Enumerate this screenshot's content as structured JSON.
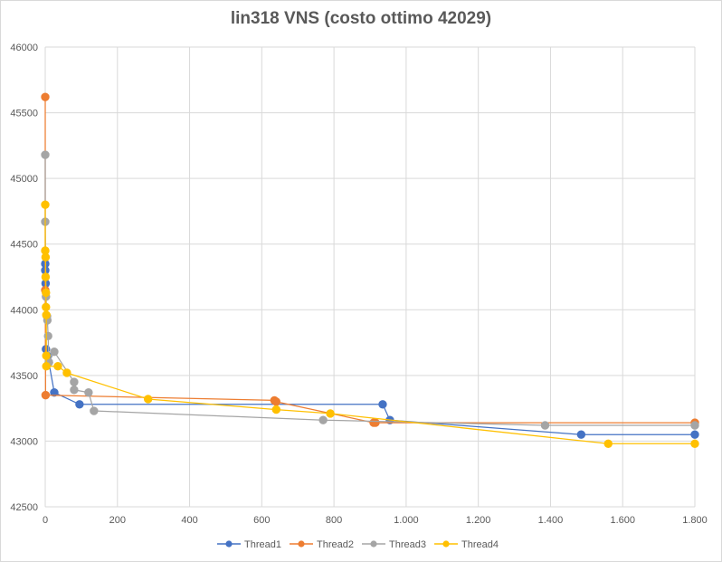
{
  "chart_data": {
    "type": "scatter",
    "title": "lin318 VNS (costo ottimo  42029)",
    "xlabel": "",
    "ylabel": "",
    "xlim": [
      0,
      1800
    ],
    "ylim": [
      42500,
      46000
    ],
    "x_ticks": [
      0,
      200,
      400,
      600,
      800,
      1000,
      1200,
      1400,
      1600,
      1800
    ],
    "x_tick_labels": [
      "0",
      "200",
      "400",
      "600",
      "800",
      "1.000",
      "1.200",
      "1.400",
      "1.600",
      "1.800"
    ],
    "y_ticks": [
      42500,
      43000,
      43500,
      44000,
      44500,
      45000,
      45500,
      46000
    ],
    "y_tick_labels": [
      "42500",
      "43000",
      "43500",
      "44000",
      "44500",
      "45000",
      "45500",
      "46000"
    ],
    "grid": true,
    "legend_position": "bottom",
    "series": [
      {
        "name": "Thread1",
        "color": "#4472C4",
        "points": [
          [
            0,
            44350
          ],
          [
            0,
            44300
          ],
          [
            1,
            44200
          ],
          [
            2,
            43700
          ],
          [
            5,
            43650
          ],
          [
            10,
            43600
          ],
          [
            25,
            43370
          ],
          [
            95,
            43280
          ],
          [
            935,
            43280
          ],
          [
            955,
            43160
          ],
          [
            1485,
            43050
          ],
          [
            1800,
            43050
          ]
        ]
      },
      {
        "name": "Thread2",
        "color": "#ED7D31",
        "points": [
          [
            0,
            45620
          ],
          [
            0,
            44150
          ],
          [
            1,
            43350
          ],
          [
            635,
            43310
          ],
          [
            640,
            43300
          ],
          [
            910,
            43140
          ],
          [
            915,
            43140
          ],
          [
            1800,
            43140
          ]
        ]
      },
      {
        "name": "Thread3",
        "color": "#A5A5A5",
        "points": [
          [
            0,
            45180
          ],
          [
            0,
            44670
          ],
          [
            2,
            44100
          ],
          [
            5,
            43950
          ],
          [
            6,
            43920
          ],
          [
            8,
            43800
          ],
          [
            10,
            43600
          ],
          [
            25,
            43680
          ],
          [
            80,
            43450
          ],
          [
            80,
            43390
          ],
          [
            120,
            43370
          ],
          [
            135,
            43230
          ],
          [
            770,
            43160
          ],
          [
            1385,
            43120
          ],
          [
            1800,
            43120
          ]
        ]
      },
      {
        "name": "Thread4",
        "color": "#FFC000",
        "points": [
          [
            0,
            44800
          ],
          [
            0,
            44450
          ],
          [
            1,
            44400
          ],
          [
            1,
            44250
          ],
          [
            2,
            44130
          ],
          [
            2,
            44020
          ],
          [
            3,
            43960
          ],
          [
            3,
            43650
          ],
          [
            3,
            43570
          ],
          [
            35,
            43570
          ],
          [
            60,
            43520
          ],
          [
            285,
            43320
          ],
          [
            640,
            43240
          ],
          [
            790,
            43210
          ],
          [
            1560,
            42980
          ],
          [
            1800,
            42980
          ]
        ]
      }
    ]
  }
}
